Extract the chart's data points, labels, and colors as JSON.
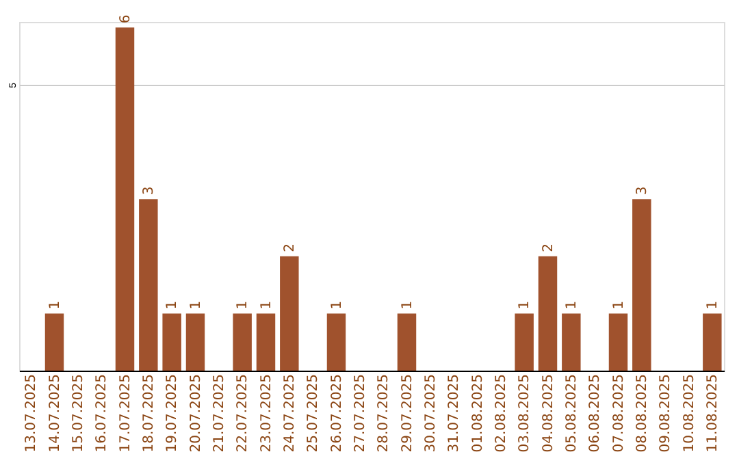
{
  "chart_data": {
    "type": "bar",
    "categories": [
      "13.07.2025",
      "14.07.2025",
      "15.07.2025",
      "16.07.2025",
      "17.07.2025",
      "18.07.2025",
      "19.07.2025",
      "20.07.2025",
      "21.07.2025",
      "22.07.2025",
      "23.07.2025",
      "24.07.2025",
      "25.07.2025",
      "26.07.2025",
      "27.07.2025",
      "28.07.2025",
      "29.07.2025",
      "30.07.2025",
      "31.07.2025",
      "01.08.2025",
      "02.08.2025",
      "03.08.2025",
      "04.08.2025",
      "05.08.2025",
      "06.08.2025",
      "07.08.2025",
      "08.08.2025",
      "09.08.2025",
      "10.08.2025",
      "11.08.2025"
    ],
    "values": [
      0,
      1,
      0,
      0,
      6,
      3,
      1,
      1,
      0,
      1,
      1,
      2,
      0,
      1,
      0,
      0,
      1,
      0,
      0,
      0,
      0,
      1,
      2,
      1,
      0,
      1,
      3,
      0,
      0,
      1
    ],
    "value_labels": [
      null,
      "1",
      null,
      null,
      "6",
      "3",
      "1",
      "1",
      null,
      "1",
      "1",
      "2",
      null,
      "1",
      null,
      null,
      "1",
      null,
      null,
      null,
      null,
      "1",
      "2",
      "1",
      null,
      "1",
      "3",
      null,
      null,
      "1"
    ],
    "color": "#a0522d",
    "ylim": [
      0,
      6.1
    ],
    "yticks": [
      5
    ],
    "grid": "y"
  }
}
